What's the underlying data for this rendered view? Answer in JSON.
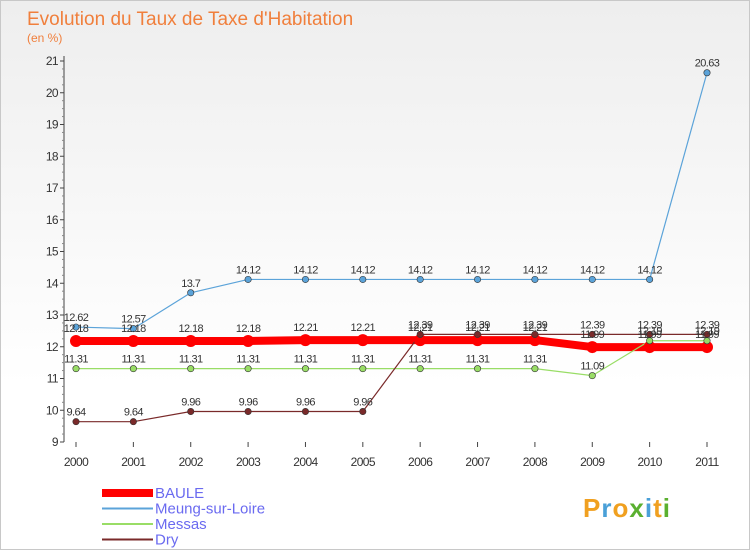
{
  "title": "Evolution du Taux de Taxe d'Habitation",
  "subtitle": "(en %)",
  "logo": {
    "text": "Proxiti",
    "letters": [
      "P",
      "r",
      "o",
      "x",
      "i",
      "t",
      "i"
    ],
    "colors": [
      "#f0a020",
      "#4aa0d8",
      "#f0a020",
      "#5ab030",
      "#4aa0d8",
      "#f0a020",
      "#5ab030"
    ]
  },
  "chart_data": {
    "type": "line",
    "title": "Evolution du Taux de Taxe d'Habitation",
    "subtitle": "(en %)",
    "x": [
      "2000",
      "2001",
      "2002",
      "2003",
      "2004",
      "2005",
      "2006",
      "2007",
      "2008",
      "2009",
      "2010",
      "2011"
    ],
    "ylim": [
      9,
      21
    ],
    "yticks": [
      "9",
      "10",
      "11",
      "12",
      "13",
      "14",
      "15",
      "16",
      "17",
      "18",
      "19",
      "20",
      "21"
    ],
    "grid": false,
    "legend_position": "bottom-left",
    "series": [
      {
        "name": "BAULE",
        "color": "#ff0000",
        "values": [
          12.18,
          12.18,
          12.18,
          12.18,
          12.21,
          12.21,
          12.21,
          12.21,
          12.21,
          11.99,
          11.99,
          11.99
        ],
        "labels": [
          "12.18",
          "12.18",
          "12.18",
          "12.18",
          "12.21",
          "12.21",
          "12.21",
          "12.21",
          "12.21",
          "11.99",
          "11.99",
          "11.99"
        ],
        "label_pos": "above",
        "emphasis": true
      },
      {
        "name": "Meung-sur-Loire",
        "color": "#5ba3d9",
        "values": [
          12.62,
          12.57,
          13.7,
          14.12,
          14.12,
          14.12,
          14.12,
          14.12,
          14.12,
          14.12,
          14.12,
          20.63
        ],
        "labels": [
          "12.62",
          "12.57",
          "13.7",
          "14.12",
          "14.12",
          "14.12",
          "14.12",
          "14.12",
          "14.12",
          "14.12",
          "14.12",
          "20.63"
        ],
        "label_pos": "above"
      },
      {
        "name": "Messas",
        "color": "#99dd66",
        "values": [
          11.31,
          11.31,
          11.31,
          11.31,
          11.31,
          11.31,
          11.31,
          11.31,
          11.31,
          11.09,
          12.19,
          12.19
        ],
        "labels": [
          "11.31",
          "11.31",
          "11.31",
          "11.31",
          "11.31",
          "11.31",
          "11.31",
          "11.31",
          "11.31",
          "11.09",
          "12.19",
          "12.19"
        ],
        "label_pos": "above"
      },
      {
        "name": "Dry",
        "color": "#7a2a2a",
        "values": [
          9.64,
          9.64,
          9.96,
          9.96,
          9.96,
          9.96,
          12.39,
          12.39,
          12.39,
          12.39,
          12.39,
          12.39
        ],
        "labels": [
          "9.64",
          "9.64",
          "9.96",
          "9.96",
          "9.96",
          "9.96",
          "12.39",
          "12.39",
          "12.39",
          "12.39",
          "12.39",
          "12.39"
        ],
        "label_pos": "above"
      }
    ]
  }
}
